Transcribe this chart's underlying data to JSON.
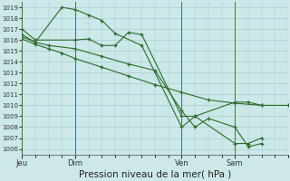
{
  "bg_color": "#cce8e8",
  "grid_color": "#aacece",
  "line_color": "#2d6a2d",
  "xlabel": "Pression niveau de la mer( hPa )",
  "xlabel_fontsize": 7.5,
  "ylim": [
    1005.5,
    1019.5
  ],
  "yticks": [
    1006,
    1007,
    1008,
    1009,
    1010,
    1011,
    1012,
    1013,
    1014,
    1015,
    1016,
    1017,
    1018,
    1019
  ],
  "xtick_labels": [
    "Jeu",
    "Dim",
    "Ven",
    "Sam"
  ],
  "xtick_positions": [
    0,
    24,
    72,
    96
  ],
  "xlim": [
    0,
    120
  ],
  "series1_x": [
    0,
    6,
    24,
    30,
    36,
    42,
    48,
    54,
    72,
    78,
    96,
    102,
    108
  ],
  "series1_y": [
    1017.0,
    1016.0,
    1016.0,
    1016.1,
    1015.5,
    1015.5,
    1016.7,
    1016.5,
    1009.0,
    1009.0,
    1010.3,
    1010.3,
    1010.0
  ],
  "series2_x": [
    0,
    6,
    18,
    24,
    30,
    36,
    42,
    54,
    72,
    78,
    96,
    102,
    108
  ],
  "series2_y": [
    1016.5,
    1015.8,
    1019.0,
    1018.8,
    1018.3,
    1017.8,
    1016.6,
    1015.5,
    1008.0,
    1009.0,
    1006.5,
    1006.5,
    1007.0
  ],
  "series3_x": [
    0,
    6,
    12,
    24,
    36,
    48,
    60,
    72,
    78,
    84,
    96,
    102,
    108
  ],
  "series3_y": [
    1016.3,
    1015.8,
    1015.5,
    1015.2,
    1014.5,
    1013.8,
    1013.2,
    1009.5,
    1008.0,
    1008.8,
    1008.0,
    1006.2,
    1006.5
  ],
  "series4_x": [
    0,
    6,
    12,
    18,
    24,
    36,
    48,
    60,
    72,
    84,
    96,
    108,
    120
  ],
  "series4_y": [
    1016.1,
    1015.6,
    1015.2,
    1014.8,
    1014.3,
    1013.5,
    1012.7,
    1011.9,
    1011.2,
    1010.5,
    1010.2,
    1010.0,
    1010.0
  ]
}
